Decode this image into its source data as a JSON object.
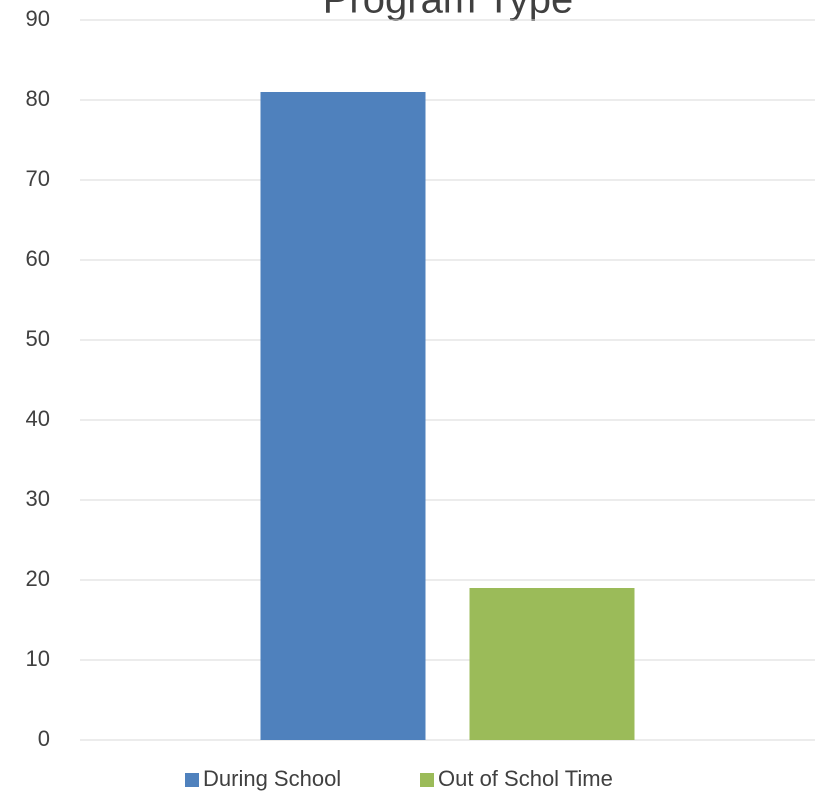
{
  "chart_data": {
    "type": "bar",
    "title": "Program Type",
    "categories": [
      null
    ],
    "series": [
      {
        "name": "During School",
        "color": "#4f81bd",
        "values": [
          81
        ]
      },
      {
        "name": "Out of Schol Time",
        "color": "#9bbb59",
        "values": [
          19
        ]
      }
    ],
    "ylim": [
      0,
      90
    ],
    "yticks": [
      0,
      10,
      20,
      30,
      40,
      50,
      60,
      70,
      80,
      90
    ],
    "grid": true,
    "legend": "bottom"
  }
}
